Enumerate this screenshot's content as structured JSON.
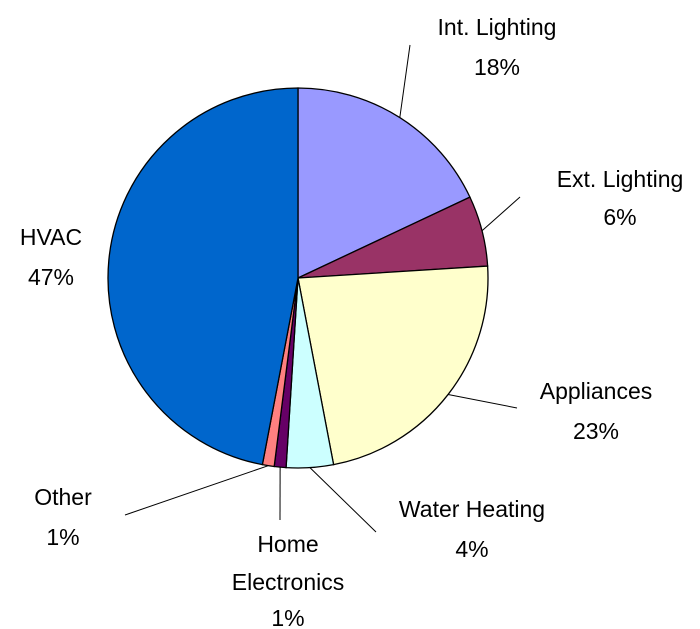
{
  "chart_data": {
    "type": "pie",
    "categories": [
      "Int. Lighting",
      "Ext. Lighting",
      "Appliances",
      "Water Heating",
      "Home Electronics",
      "Other",
      "HVAC"
    ],
    "values": [
      18,
      6,
      23,
      4,
      1,
      1,
      47
    ],
    "value_labels": [
      "18%",
      "6%",
      "23%",
      "4%",
      "1%",
      "1%",
      "47%"
    ],
    "colors": [
      "#9999ff",
      "#993366",
      "#ffffcc",
      "#ccffff",
      "#660066",
      "#ff8080",
      "#0066cc"
    ]
  }
}
